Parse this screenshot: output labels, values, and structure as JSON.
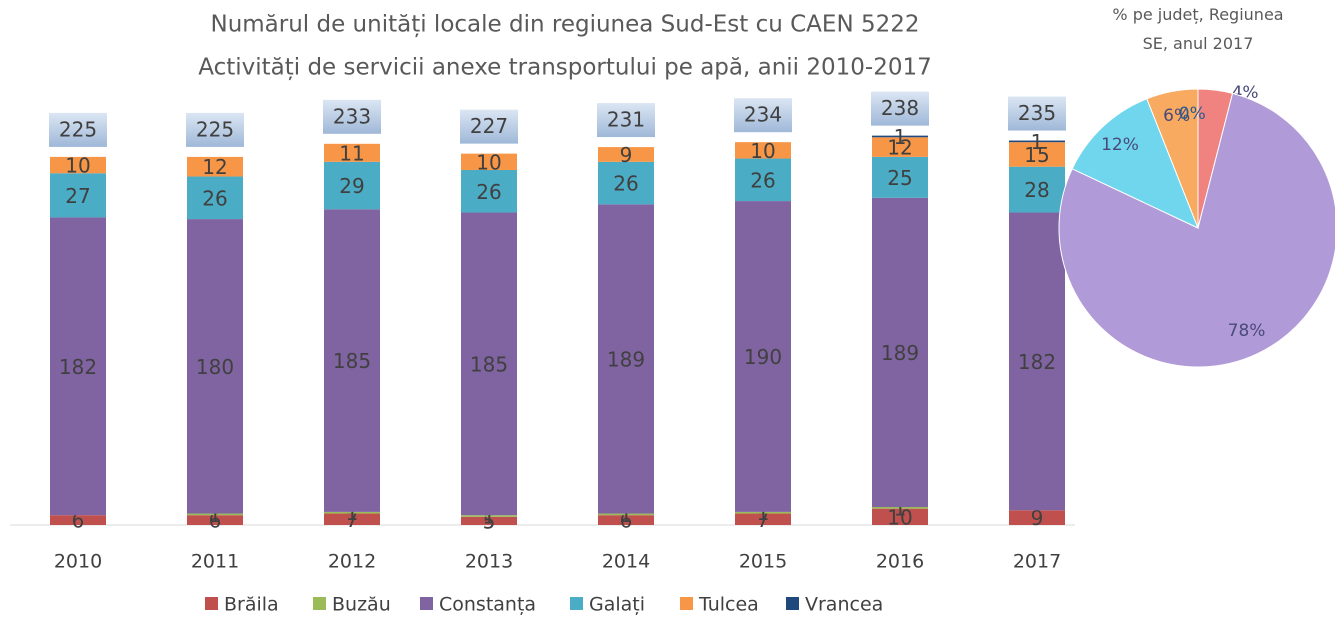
{
  "chart_data": [
    {
      "type": "bar",
      "stacked": true,
      "title": "Numărul de unități locale din regiunea Sud-Est cu CAEN 5222",
      "subtitle": "Activități de servicii anexe transportului pe apă, anii 2010-2017",
      "categories": [
        "2010",
        "2011",
        "2012",
        "2013",
        "2014",
        "2015",
        "2016",
        "2017"
      ],
      "ylim": [
        0,
        250
      ],
      "series": [
        {
          "name": "Brăila",
          "color": "#c0504d",
          "values": [
            6,
            6,
            7,
            5,
            6,
            7,
            10,
            9
          ]
        },
        {
          "name": "Buzău",
          "color": "#9bbb59",
          "values": [
            null,
            1,
            1,
            1,
            1,
            1,
            1,
            null
          ]
        },
        {
          "name": "Constanța",
          "color": "#8064a2",
          "values": [
            182,
            180,
            185,
            185,
            189,
            190,
            189,
            182
          ]
        },
        {
          "name": "Galați",
          "color": "#4bacc6",
          "values": [
            27,
            26,
            29,
            26,
            26,
            26,
            25,
            28
          ]
        },
        {
          "name": "Tulcea",
          "color": "#f79646",
          "values": [
            10,
            12,
            11,
            10,
            9,
            10,
            12,
            15
          ]
        },
        {
          "name": "Vrancea",
          "color": "#1f497d",
          "values": [
            null,
            null,
            null,
            null,
            null,
            null,
            1,
            1
          ]
        }
      ],
      "totals": [
        225,
        225,
        233,
        227,
        231,
        234,
        238,
        235
      ],
      "legend": "bottom"
    },
    {
      "type": "pie",
      "title": "% pe județ, Regiunea SE, anul 2017",
      "categories": [
        "Brăila",
        "Constanța",
        "Galați",
        "Tulcea",
        "Vrancea"
      ],
      "values": [
        4,
        78,
        12,
        6,
        0
      ],
      "value_labels": [
        "4%",
        "78%",
        "12%",
        "6%",
        "0%"
      ],
      "colors": [
        "#f0827f",
        "#b09ad8",
        "#6fd6ee",
        "#f8ab60",
        "#2f5a8f"
      ]
    }
  ]
}
